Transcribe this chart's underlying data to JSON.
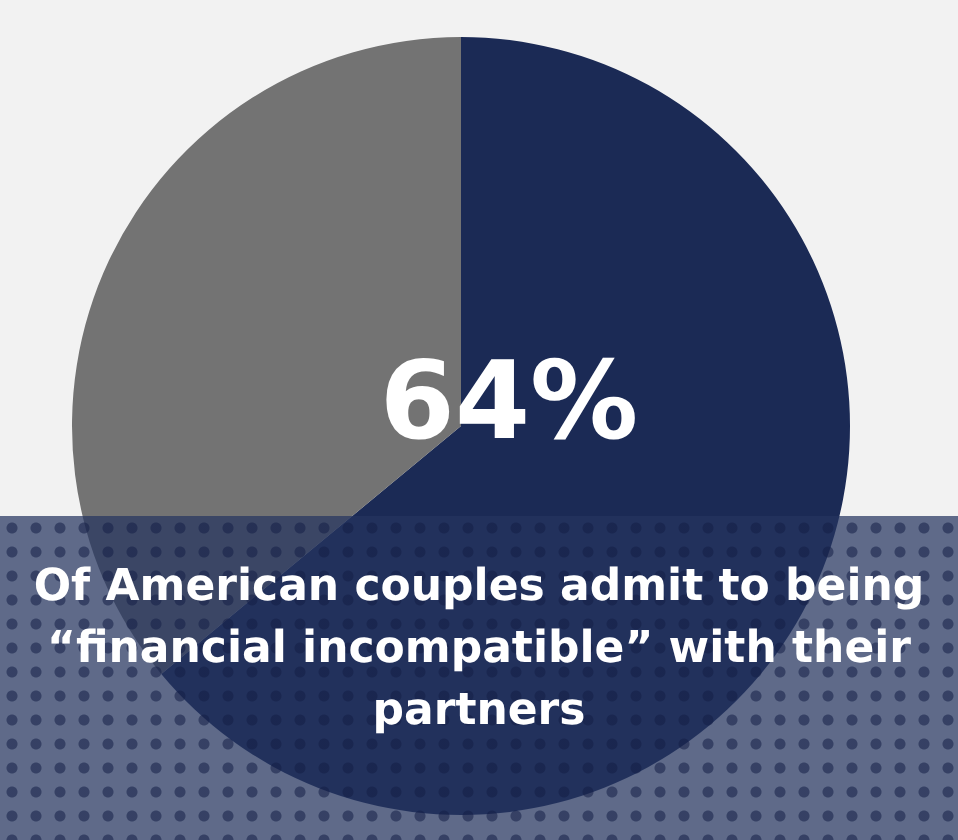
{
  "chart_data": {
    "type": "pie",
    "categories": [
      null,
      null
    ],
    "values": [
      64,
      36
    ],
    "colors": [
      "#1b2a55",
      "#737373"
    ],
    "value_labels": [
      "64%",
      null
    ],
    "annotations": [
      "Of American couples admit to being “financial incompatible” with their partners"
    ]
  }
}
